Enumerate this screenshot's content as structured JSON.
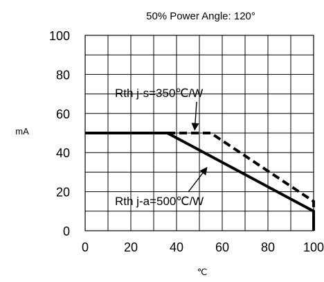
{
  "chart_data": {
    "type": "line",
    "title": "50% Power Angle: 120°",
    "xlabel": "℃",
    "ylabel": "mA",
    "xlim": [
      0,
      100
    ],
    "ylim": [
      0,
      100
    ],
    "x_ticks": [
      0,
      20,
      40,
      60,
      80,
      100
    ],
    "y_ticks": [
      0,
      20,
      40,
      60,
      80,
      100
    ],
    "grid": true,
    "series": [
      {
        "name": "Rth j-s=350℃/W",
        "style": "dashed",
        "points": [
          [
            0,
            50
          ],
          [
            45,
            50
          ],
          [
            55,
            50
          ],
          [
            100,
            15
          ],
          [
            100,
            0
          ]
        ]
      },
      {
        "name": "Rth j-a=500℃/W",
        "style": "solid",
        "points": [
          [
            0,
            50
          ],
          [
            36,
            50
          ],
          [
            100,
            10
          ],
          [
            100,
            0
          ]
        ]
      }
    ],
    "annotations": [
      {
        "text": "Rth j-s=350℃/W",
        "target": [
          48,
          50
        ]
      },
      {
        "text": "Rth j-a=500℃/W",
        "target": [
          53,
          34
        ]
      }
    ]
  }
}
